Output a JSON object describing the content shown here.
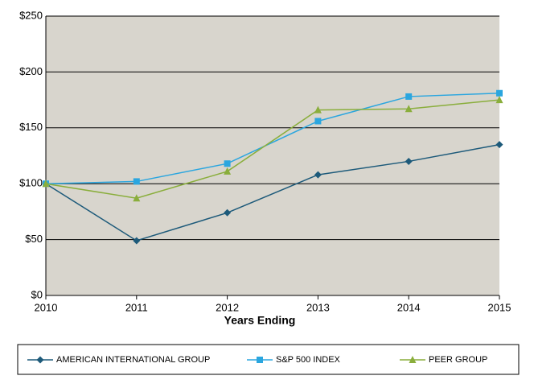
{
  "chart_data": {
    "type": "line",
    "xlabel": "Years Ending",
    "x": [
      2010,
      2011,
      2012,
      2013,
      2014,
      2015
    ],
    "xlim": [
      2010,
      2015
    ],
    "xticks": [
      2010,
      2011,
      2012,
      2013,
      2014,
      2015
    ],
    "ylim": [
      0,
      250
    ],
    "yticks": [
      {
        "value": 0,
        "label": "$0"
      },
      {
        "value": 50,
        "label": "$50"
      },
      {
        "value": 100,
        "label": "$100"
      },
      {
        "value": 150,
        "label": "$150"
      },
      {
        "value": 200,
        "label": "$200"
      },
      {
        "value": 250,
        "label": "$250"
      }
    ],
    "grid": true,
    "legend": "bottom",
    "series": [
      {
        "name": "AMERICAN INTERNATIONAL GROUP",
        "color": "#1d5a7a",
        "marker": "diamond",
        "values": [
          100,
          49,
          74,
          108,
          120,
          135
        ]
      },
      {
        "name": "S&P 500 INDEX",
        "color": "#2ba6df",
        "marker": "square",
        "values": [
          100,
          102,
          118,
          156,
          178,
          181
        ]
      },
      {
        "name": "PEER GROUP",
        "color": "#8aae3c",
        "marker": "triangle",
        "values": [
          100,
          87,
          111,
          166,
          167,
          175
        ]
      }
    ]
  }
}
